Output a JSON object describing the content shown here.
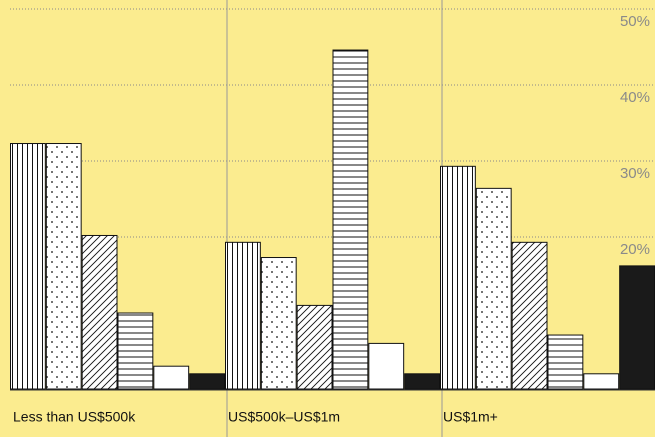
{
  "chart_data": {
    "type": "bar",
    "categories": [
      "Less than US$500k",
      "US$500k–US$1m",
      "US$1m+"
    ],
    "series": [
      {
        "values": [
          32.3,
          19.3,
          29.3
        ]
      },
      {
        "values": [
          32.3,
          17.3,
          26.4
        ]
      },
      {
        "values": [
          20.2,
          11,
          19.3
        ]
      },
      {
        "values": [
          10,
          44.6,
          7.1
        ]
      },
      {
        "values": [
          3,
          6,
          2
        ]
      },
      {
        "values": [
          2,
          2,
          16.2
        ]
      }
    ],
    "ylim": [
      0,
      50
    ],
    "yticks": [
      {
        "value": 20,
        "label": "20%"
      },
      {
        "value": 30,
        "label": "30%"
      },
      {
        "value": 40,
        "label": "40%"
      },
      {
        "value": 50,
        "label": "50%"
      }
    ],
    "grid": true
  }
}
